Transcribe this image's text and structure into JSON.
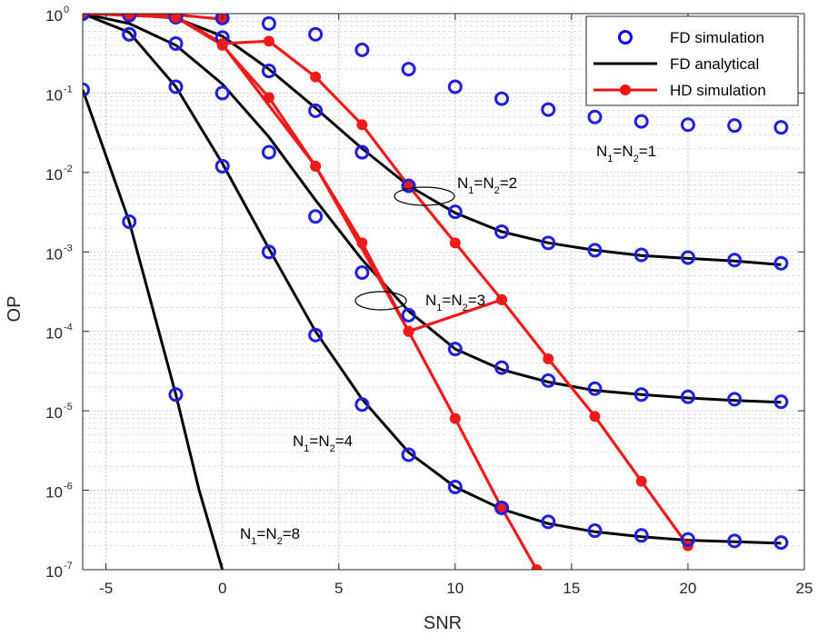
{
  "chart_data": {
    "type": "line",
    "xlabel": "SNR",
    "ylabel": "OP",
    "xlim": [
      -6,
      25
    ],
    "ylim": [
      1e-07,
      1
    ],
    "yscale": "log",
    "grid": true,
    "legend_position": "top-right",
    "x_ticks": [
      -5,
      0,
      5,
      10,
      15,
      20,
      25
    ],
    "x_tick_labels": [
      "-5",
      "0",
      "5",
      "10",
      "15",
      "20",
      "25"
    ],
    "y_ticks": [
      {
        "value": 1.0,
        "base": "10",
        "exp": "0"
      },
      {
        "value": 0.1,
        "base": "10",
        "exp": "-1"
      },
      {
        "value": 0.01,
        "base": "10",
        "exp": "-2"
      },
      {
        "value": 0.001,
        "base": "10",
        "exp": "-3"
      },
      {
        "value": 0.0001,
        "base": "10",
        "exp": "-4"
      },
      {
        "value": 1e-05,
        "base": "10",
        "exp": "-5"
      },
      {
        "value": 1e-06,
        "base": "10",
        "exp": "-6"
      },
      {
        "value": 1e-07,
        "base": "10",
        "exp": "-7"
      }
    ],
    "legend": [
      {
        "label": "FD simulation",
        "style": "marker",
        "color": "#0000ee"
      },
      {
        "label": "FD analytical",
        "style": "line",
        "color": "#000000"
      },
      {
        "label": "HD simulation",
        "style": "line-marker",
        "color": "#ee1111"
      }
    ],
    "colors": {
      "fd_sim": "#1f1fdd",
      "fd_ana": "#000000",
      "hd_sim": "#ee1b1b"
    },
    "series": [
      {
        "group": "N=1",
        "fd_simulation": [
          [
            -6,
            1
          ],
          [
            -4,
            0.96
          ],
          [
            -2,
            0.94
          ],
          [
            0,
            0.88
          ],
          [
            2,
            0.75
          ],
          [
            4,
            0.55
          ],
          [
            6,
            0.35
          ],
          [
            8,
            0.2
          ],
          [
            10,
            0.12
          ],
          [
            12,
            0.085
          ],
          [
            14,
            0.062
          ],
          [
            16,
            0.05
          ],
          [
            18,
            0.044
          ],
          [
            20,
            0.04
          ],
          [
            22,
            0.039
          ],
          [
            24,
            0.037
          ]
        ],
        "hd_simulation": [
          [
            -6,
            1
          ],
          [
            -4,
            0.99
          ],
          [
            -2,
            0.97
          ],
          [
            0,
            0.85
          ]
        ]
      },
      {
        "group": "N=2",
        "fd_simulation": [
          [
            -6,
            1
          ],
          [
            -4,
            0.97
          ],
          [
            -2,
            0.9
          ],
          [
            0,
            0.5
          ],
          [
            2,
            0.19
          ],
          [
            4,
            0.06
          ],
          [
            6,
            0.018
          ],
          [
            8,
            0.0068
          ],
          [
            10,
            0.0032
          ],
          [
            12,
            0.0018
          ],
          [
            14,
            0.0013
          ],
          [
            16,
            0.00105
          ],
          [
            18,
            0.00092
          ],
          [
            20,
            0.00085
          ],
          [
            22,
            0.00079
          ],
          [
            24,
            0.00072
          ]
        ],
        "fd_analytical": [
          [
            -6,
            1
          ],
          [
            -4,
            0.97
          ],
          [
            -2,
            0.88
          ],
          [
            0,
            0.52
          ],
          [
            2,
            0.2
          ],
          [
            4,
            0.065
          ],
          [
            6,
            0.02
          ],
          [
            8,
            0.0068
          ],
          [
            10,
            0.0031
          ],
          [
            12,
            0.0018
          ],
          [
            14,
            0.0013
          ],
          [
            16,
            0.00105
          ],
          [
            18,
            0.0009
          ],
          [
            20,
            0.00083
          ],
          [
            22,
            0.00077
          ],
          [
            24,
            0.00069
          ]
        ],
        "hd_simulation": [
          [
            -6,
            1
          ],
          [
            -4,
            0.99
          ],
          [
            -2,
            0.92
          ],
          [
            0,
            0.42
          ],
          [
            2,
            0.45
          ],
          [
            4,
            0.16
          ],
          [
            6,
            0.04
          ],
          [
            8,
            0.0068
          ],
          [
            10,
            0.0013
          ],
          [
            12,
            0.00025
          ]
        ]
      },
      {
        "group": "N=3",
        "fd_simulation": [
          [
            -6,
            1
          ],
          [
            -4,
            0.55
          ],
          [
            -2,
            0.42
          ],
          [
            0,
            0.1
          ],
          [
            2,
            0.018
          ],
          [
            4,
            0.0028
          ],
          [
            6,
            0.00055
          ],
          [
            8,
            0.00016
          ],
          [
            10,
            6e-05
          ],
          [
            12,
            3.5e-05
          ],
          [
            14,
            2.4e-05
          ],
          [
            16,
            1.9e-05
          ],
          [
            18,
            1.6e-05
          ],
          [
            20,
            1.5e-05
          ],
          [
            22,
            1.4e-05
          ],
          [
            24,
            1.3e-05
          ]
        ],
        "fd_analytical": [
          [
            -6,
            1
          ],
          [
            -4,
            0.75
          ],
          [
            -2,
            0.4
          ],
          [
            0,
            0.13
          ],
          [
            2,
            0.028
          ],
          [
            4,
            0.0045
          ],
          [
            6,
            0.0008
          ],
          [
            8,
            0.00018
          ],
          [
            10,
            6e-05
          ],
          [
            12,
            3.3e-05
          ],
          [
            14,
            2.3e-05
          ],
          [
            16,
            1.8e-05
          ],
          [
            18,
            1.6e-05
          ],
          [
            20,
            1.45e-05
          ],
          [
            22,
            1.35e-05
          ],
          [
            24,
            1.28e-05
          ]
        ],
        "hd_simulation": [
          [
            -6,
            1
          ],
          [
            -4,
            0.98
          ],
          [
            -2,
            0.9
          ],
          [
            0,
            0.4
          ],
          [
            2,
            0.088
          ],
          [
            4,
            0.012
          ],
          [
            6,
            0.0013
          ],
          [
            8,
            0.0001
          ],
          [
            10,
            8e-06
          ],
          [
            12,
            6e-07
          ],
          [
            13.5,
            1e-07
          ]
        ]
      },
      {
        "group": "N=4",
        "fd_simulation": [
          [
            -6,
            1
          ],
          [
            -4,
            0.55
          ],
          [
            -2,
            0.12
          ],
          [
            0,
            0.012
          ],
          [
            2,
            0.001
          ],
          [
            4,
            9e-05
          ],
          [
            6,
            1.2e-05
          ],
          [
            8,
            2.8e-06
          ],
          [
            10,
            1.1e-06
          ],
          [
            12,
            6e-07
          ],
          [
            14,
            4e-07
          ],
          [
            16,
            3.1e-07
          ],
          [
            18,
            2.7e-07
          ],
          [
            20,
            2.4e-07
          ],
          [
            22,
            2.3e-07
          ],
          [
            24,
            2.2e-07
          ]
        ],
        "fd_analytical": [
          [
            -6,
            1
          ],
          [
            -4,
            0.58
          ],
          [
            -2,
            0.12
          ],
          [
            0,
            0.013
          ],
          [
            2,
            0.0011
          ],
          [
            4,
            0.0001
          ],
          [
            6,
            1.4e-05
          ],
          [
            8,
            3e-06
          ],
          [
            10,
            1.1e-06
          ],
          [
            12,
            5.8e-07
          ],
          [
            14,
            3.8e-07
          ],
          [
            16,
            3e-07
          ],
          [
            18,
            2.6e-07
          ],
          [
            20,
            2.35e-07
          ],
          [
            22,
            2.25e-07
          ],
          [
            24,
            2.15e-07
          ]
        ],
        "hd_simulation": [
          [
            -6,
            1
          ],
          [
            -2,
            0.9
          ],
          [
            0,
            0.41
          ],
          [
            4,
            0.012
          ],
          [
            8,
            0.0001
          ],
          [
            12,
            0.00025
          ],
          [
            14,
            4.5e-05
          ],
          [
            16,
            8.5e-06
          ],
          [
            18,
            1.3e-06
          ],
          [
            20,
            2e-07
          ]
        ]
      },
      {
        "group": "N=8",
        "fd_simulation": [
          [
            -6,
            0.11
          ],
          [
            -4,
            0.0024
          ],
          [
            -2,
            1.6e-05
          ]
        ],
        "fd_analytical": [
          [
            -6,
            0.11
          ],
          [
            -4,
            0.0024
          ],
          [
            -2,
            1.6e-05
          ],
          [
            -1,
            1e-06
          ],
          [
            0,
            1e-07
          ]
        ]
      }
    ],
    "annotations": [
      {
        "group": "N=1",
        "a": "N",
        "s1": "1",
        "eq": "=N",
        "s2": "2",
        "tail": "=1"
      },
      {
        "group": "N=2",
        "a": "N",
        "s1": "1",
        "eq": "=N",
        "s2": "2",
        "tail": "=2"
      },
      {
        "group": "N=3",
        "a": "N",
        "s1": "1",
        "eq": "=N",
        "s2": "2",
        "tail": "=3"
      },
      {
        "group": "N=4",
        "a": "N",
        "s1": "1",
        "eq": "=N",
        "s2": "2",
        "tail": "=4"
      },
      {
        "group": "N=8",
        "a": "N",
        "s1": "1",
        "eq": "=N",
        "s2": "2",
        "tail": "=8"
      }
    ]
  }
}
